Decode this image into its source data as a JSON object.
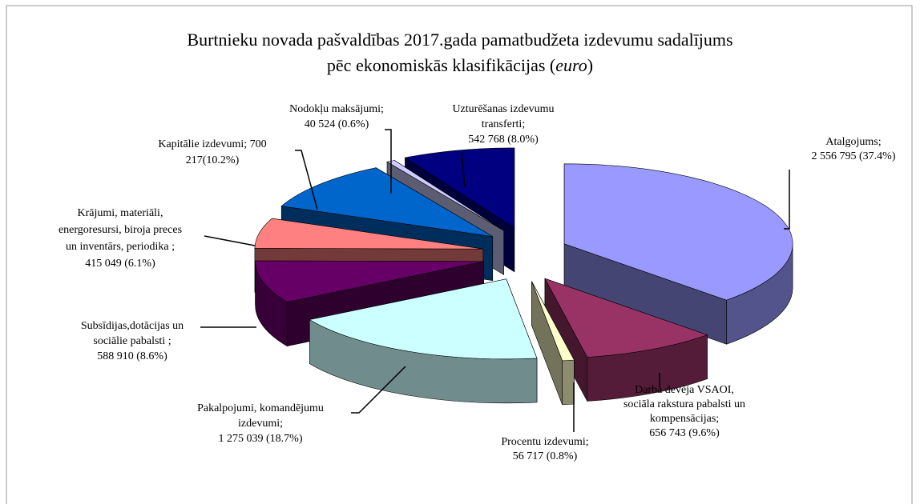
{
  "chart_data": {
    "type": "pie",
    "title": [
      "Burtnieku novada pašvaldības 2017.gada pamatbudžeta izdevumu sadalījums",
      "pēc ekonomiskās klasifikācijas (",
      "euro",
      ")"
    ],
    "labels": [
      [
        "Atalgojums;",
        "2 556 795 (37.4%)"
      ],
      [
        "Darba devēja VSAOI,",
        "sociāla rakstura pabalsti un",
        "kompensācijas;",
        "656 743 (9.6%)"
      ],
      [
        "Procentu izdevumi;",
        "56 717 (0.8%)"
      ],
      [
        "Pakalpojumi, komandējumu",
        "izdevumi;",
        "1 275 039 (18.7%)"
      ],
      [
        "Subsīdijas,dotācijas un",
        "sociālie pabalsti ;",
        "588 910 (8.6%)"
      ],
      [
        "Krājumi, materiāli,",
        "energoresursi, biroja preces",
        "un inventārs, periodika ;",
        "415 049 (6.1%)"
      ],
      [
        "Kapitālie izdevumi; 700",
        "217(10.2%)"
      ],
      [
        "Nodokļu maksājumi;",
        "40 524 (0.6%)"
      ],
      [
        "Uzturēšanas izdevumu",
        "transferti;",
        "542 768 (8.0%)"
      ]
    ],
    "values": [
      2556795,
      656743,
      56717,
      1275039,
      588910,
      415049,
      700217,
      40524,
      542768
    ],
    "colors": [
      "#9999ff",
      "#993366",
      "#ffffcc",
      "#ccffff",
      "#660066",
      "#ff8080",
      "#0066cc",
      "#ccccff",
      "#000080"
    ]
  }
}
